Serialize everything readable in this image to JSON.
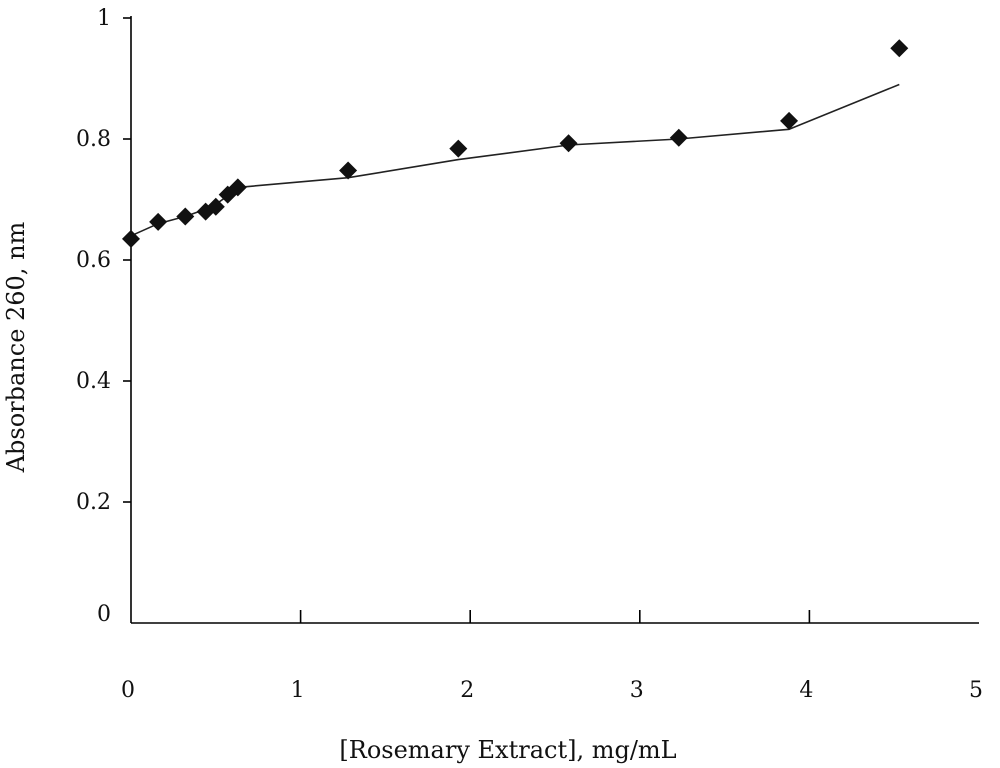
{
  "chart_data": {
    "type": "scatter",
    "title": "",
    "xlabel": "[Rosemary Extract], mg/mL",
    "ylabel": "Absorbance 260, nm",
    "xlim": [
      0,
      5
    ],
    "ylim": [
      0,
      1
    ],
    "x_ticks": [
      "0",
      "1",
      "2",
      "3",
      "4",
      "5"
    ],
    "y_ticks": [
      "0",
      "0.2",
      "0.4",
      "0.6",
      "0.8",
      "1"
    ],
    "grid": false,
    "legend": "none",
    "marker": "diamond",
    "marker_color": "#111111",
    "line_color": "#222222",
    "points": {
      "x": [
        0,
        0.16,
        0.32,
        0.44,
        0.5,
        0.57,
        0.63,
        1.28,
        1.93,
        2.58,
        3.23,
        3.88,
        4.53
      ],
      "y": [
        0.635,
        0.663,
        0.672,
        0.68,
        0.688,
        0.708,
        0.72,
        0.748,
        0.784,
        0.793,
        0.802,
        0.83,
        0.95
      ]
    },
    "trend_line": {
      "x": [
        0,
        0.16,
        0.32,
        0.44,
        0.5,
        0.57,
        0.63,
        1.28,
        1.93,
        2.58,
        3.23,
        3.88,
        4.53
      ],
      "y": [
        0.64,
        0.66,
        0.672,
        0.684,
        0.692,
        0.706,
        0.72,
        0.736,
        0.766,
        0.79,
        0.8,
        0.816,
        0.89
      ]
    }
  }
}
